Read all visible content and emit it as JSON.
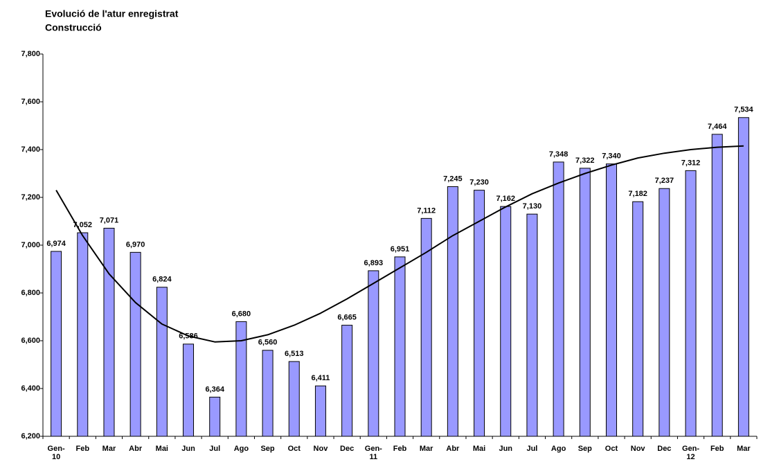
{
  "chart_data": {
    "type": "bar",
    "title": "Evolució de l'atur enregistrat",
    "subtitle": "Construcció",
    "categories": [
      "Gen-\n10",
      "Feb",
      "Mar",
      "Abr",
      "Mai",
      "Jun",
      "Jul",
      "Ago",
      "Sep",
      "Oct",
      "Nov",
      "Dec",
      "Gen-\n11",
      "Feb",
      "Mar",
      "Abr",
      "Mai",
      "Jun",
      "Jul",
      "Ago",
      "Sep",
      "Oct",
      "Nov",
      "Dec",
      "Gen-\n12",
      "Feb",
      "Mar"
    ],
    "values": [
      6974,
      7052,
      7071,
      6970,
      6824,
      6586,
      6364,
      6680,
      6560,
      6513,
      6411,
      6665,
      6893,
      6951,
      7112,
      7245,
      7230,
      7162,
      7130,
      7348,
      7322,
      7340,
      7182,
      7237,
      7312,
      7464,
      7534
    ],
    "value_labels": [
      "6,974",
      "7,052",
      "7,071",
      "6,970",
      "6,824",
      "6,586",
      "6,364",
      "6,680",
      "6,560",
      "6,513",
      "6,411",
      "6,665",
      "6,893",
      "6,951",
      "7,112",
      "7,245",
      "7,230",
      "7,162",
      "7,130",
      "7,348",
      "7,322",
      "7,340",
      "7,182",
      "7,237",
      "7,312",
      "7,464",
      "7,534"
    ],
    "color": "#9999ff",
    "trendline": {
      "color": "#000000",
      "values": [
        7230,
        7040,
        6880,
        6760,
        6670,
        6620,
        6595,
        6600,
        6625,
        6665,
        6715,
        6775,
        6840,
        6905,
        6970,
        7040,
        7100,
        7160,
        7215,
        7260,
        7300,
        7335,
        7365,
        7385,
        7400,
        7410,
        7415
      ]
    },
    "ylim": [
      6200,
      7800
    ],
    "yticks": [
      {
        "value": 6200,
        "label": "6,200"
      },
      {
        "value": 6400,
        "label": "6,400"
      },
      {
        "value": 6600,
        "label": "6,600"
      },
      {
        "value": 6800,
        "label": "6,800"
      },
      {
        "value": 7000,
        "label": "7,000"
      },
      {
        "value": 7200,
        "label": "7,200"
      },
      {
        "value": 7400,
        "label": "7,400"
      },
      {
        "value": 7600,
        "label": "7,600"
      },
      {
        "value": 7800,
        "label": "7,800"
      }
    ],
    "grid": false
  }
}
